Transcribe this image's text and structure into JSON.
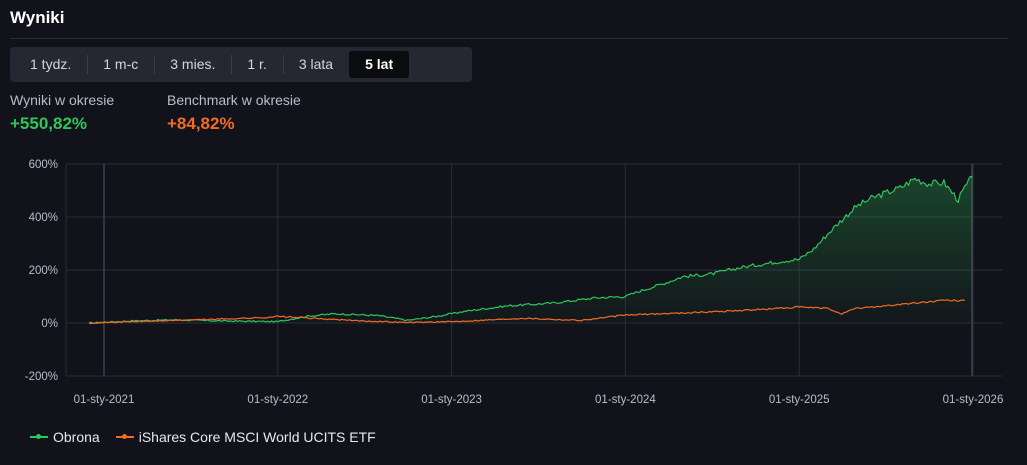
{
  "header": {
    "title": "Wyniki"
  },
  "tabs": [
    {
      "label": "1 tydz.",
      "active": false
    },
    {
      "label": "1 m-c",
      "active": false
    },
    {
      "label": "3 mies.",
      "active": false
    },
    {
      "label": "1 r.",
      "active": false
    },
    {
      "label": "3 lata",
      "active": false
    },
    {
      "label": "5 lat",
      "active": true
    }
  ],
  "stats": {
    "portfolio": {
      "label": "Wyniki w okresie",
      "value": "+550,82%"
    },
    "benchmark": {
      "label": "Benchmark w okresie",
      "value": "+84,82%"
    }
  },
  "colors": {
    "portfolio": "#2ec55b",
    "benchmark": "#f26b22",
    "grid": "#2a2d36"
  },
  "chart_data": {
    "type": "line",
    "x_tick_labels": [
      "01-sty-2021",
      "01-sty-2022",
      "01-sty-2023",
      "01-sty-2024",
      "01-sty-2025",
      "01-sty-2026"
    ],
    "y_tick_labels": [
      "600%",
      "400%",
      "200%",
      "0%",
      "-200%"
    ],
    "y_ticks": [
      600,
      400,
      200,
      0,
      -200
    ],
    "ylim": [
      -200,
      600
    ],
    "xlim": [
      "2020-11-12",
      "2026-01-01"
    ],
    "grid": true,
    "legend_position": "bottom-left",
    "series": [
      {
        "name": "Obrona",
        "color": "#2ec55b",
        "area_fill": true,
        "points": [
          [
            "2020-12-01",
            0
          ],
          [
            "2021-03-01",
            8
          ],
          [
            "2021-06-01",
            12
          ],
          [
            "2021-09-01",
            8
          ],
          [
            "2022-01-01",
            5
          ],
          [
            "2022-03-01",
            25
          ],
          [
            "2022-05-01",
            35
          ],
          [
            "2022-08-01",
            28
          ],
          [
            "2022-10-01",
            10
          ],
          [
            "2022-12-01",
            25
          ],
          [
            "2023-02-01",
            45
          ],
          [
            "2023-05-01",
            65
          ],
          [
            "2023-08-01",
            75
          ],
          [
            "2023-11-01",
            95
          ],
          [
            "2024-01-01",
            100
          ],
          [
            "2024-02-01",
            120
          ],
          [
            "2024-04-01",
            155
          ],
          [
            "2024-05-01",
            175
          ],
          [
            "2024-07-01",
            185
          ],
          [
            "2024-09-01",
            210
          ],
          [
            "2024-12-01",
            235
          ],
          [
            "2025-01-01",
            240
          ],
          [
            "2025-02-01",
            280
          ],
          [
            "2025-03-01",
            335
          ],
          [
            "2025-04-01",
            390
          ],
          [
            "2025-05-01",
            440
          ],
          [
            "2025-06-01",
            470
          ],
          [
            "2025-07-01",
            490
          ],
          [
            "2025-08-01",
            510
          ],
          [
            "2025-09-01",
            545
          ],
          [
            "2025-10-01",
            525
          ],
          [
            "2025-11-01",
            530
          ],
          [
            "2025-12-01",
            465
          ],
          [
            "2025-12-15",
            510
          ],
          [
            "2025-12-31",
            551
          ]
        ]
      },
      {
        "name": "iShares Core MSCI World UCITS ETF",
        "color": "#f26b22",
        "area_fill": false,
        "points": [
          [
            "2020-12-01",
            0
          ],
          [
            "2021-06-01",
            10
          ],
          [
            "2021-12-01",
            20
          ],
          [
            "2022-01-01",
            25
          ],
          [
            "2022-06-01",
            10
          ],
          [
            "2022-10-01",
            2
          ],
          [
            "2023-01-01",
            5
          ],
          [
            "2023-06-01",
            18
          ],
          [
            "2023-10-01",
            10
          ],
          [
            "2024-01-01",
            30
          ],
          [
            "2024-06-01",
            40
          ],
          [
            "2024-10-01",
            50
          ],
          [
            "2025-01-01",
            60
          ],
          [
            "2025-03-01",
            55
          ],
          [
            "2025-04-01",
            35
          ],
          [
            "2025-05-01",
            55
          ],
          [
            "2025-08-01",
            70
          ],
          [
            "2025-11-01",
            85
          ],
          [
            "2025-12-15",
            85
          ]
        ]
      }
    ]
  }
}
